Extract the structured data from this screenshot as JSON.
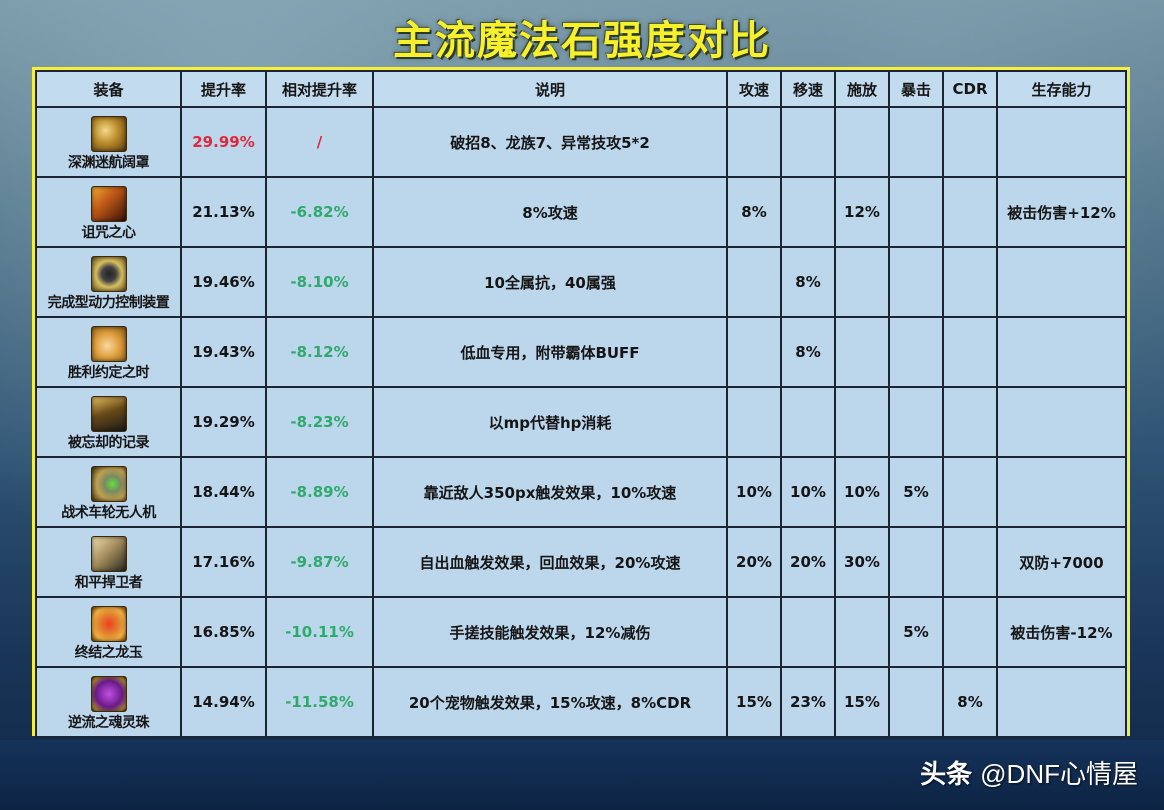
{
  "title": "主流魔法石强度对比",
  "colors": {
    "title": "#f8f02a",
    "frame_border": "#f5ee3a",
    "table_bg": "#bcd6ec",
    "grid": "#1b2533",
    "top_rate": "#e0283c",
    "relative_rate": "#2eaa6a"
  },
  "table": {
    "headers": {
      "gear": "装备",
      "rate": "提升率",
      "relative": "相对提升率",
      "desc": "说明",
      "atk_speed": "攻速",
      "move_speed": "移速",
      "cast_speed": "施放",
      "crit": "暴击",
      "cdr": "CDR",
      "survival": "生存能力"
    },
    "rows": [
      {
        "name": "深渊迷航阔罩",
        "icon": "golden-orb-icon",
        "rate": "29.99%",
        "relative": "/",
        "desc": "破招8、龙族7、异常技攻5*2",
        "atk_speed": "",
        "move_speed": "",
        "cast_speed": "",
        "crit": "",
        "cdr": "",
        "survival": ""
      },
      {
        "name": "诅咒之心",
        "icon": "cursed-heart-icon",
        "rate": "21.13%",
        "relative": "-6.82%",
        "desc": "8%攻速",
        "atk_speed": "8%",
        "move_speed": "",
        "cast_speed": "12%",
        "crit": "",
        "cdr": "",
        "survival": "被击伤害+12%"
      },
      {
        "name": "完成型动力控制装置",
        "icon": "power-control-device-icon",
        "rate": "19.46%",
        "relative": "-8.10%",
        "desc": "10全属抗，40属强",
        "atk_speed": "",
        "move_speed": "8%",
        "cast_speed": "",
        "crit": "",
        "cdr": "",
        "survival": ""
      },
      {
        "name": "胜利约定之时",
        "icon": "victory-promise-icon",
        "rate": "19.43%",
        "relative": "-8.12%",
        "desc": "低血专用，附带霸体BUFF",
        "atk_speed": "",
        "move_speed": "8%",
        "cast_speed": "",
        "crit": "",
        "cdr": "",
        "survival": ""
      },
      {
        "name": "被忘却的记录",
        "icon": "forgotten-record-icon",
        "rate": "19.29%",
        "relative": "-8.23%",
        "desc": "以mp代替hp消耗",
        "atk_speed": "",
        "move_speed": "",
        "cast_speed": "",
        "crit": "",
        "cdr": "",
        "survival": ""
      },
      {
        "name": "战术车轮无人机",
        "icon": "wheel-drone-icon",
        "rate": "18.44%",
        "relative": "-8.89%",
        "desc": "靠近敌人350px触发效果，10%攻速",
        "atk_speed": "10%",
        "move_speed": "10%",
        "cast_speed": "10%",
        "crit": "5%",
        "cdr": "",
        "survival": ""
      },
      {
        "name": "和平捍卫者",
        "icon": "peace-guardian-icon",
        "rate": "17.16%",
        "relative": "-9.87%",
        "desc": "自出血触发效果，回血效果，20%攻速",
        "atk_speed": "20%",
        "move_speed": "20%",
        "cast_speed": "30%",
        "crit": "",
        "cdr": "",
        "survival": "双防+7000"
      },
      {
        "name": "终结之龙玉",
        "icon": "dragon-jade-icon",
        "rate": "16.85%",
        "relative": "-10.11%",
        "desc": "手搓技能触发效果，12%减伤",
        "atk_speed": "",
        "move_speed": "",
        "cast_speed": "",
        "crit": "5%",
        "cdr": "",
        "survival": "被击伤害-12%"
      },
      {
        "name": "逆流之魂灵珠",
        "icon": "soul-orb-icon",
        "rate": "14.94%",
        "relative": "-11.58%",
        "desc": "20个宠物触发效果，15%攻速，8%CDR",
        "atk_speed": "15%",
        "move_speed": "23%",
        "cast_speed": "15%",
        "crit": "",
        "cdr": "8%",
        "survival": ""
      }
    ]
  },
  "watermark": {
    "brand": "头条",
    "handle": "@DNF心情屋"
  }
}
